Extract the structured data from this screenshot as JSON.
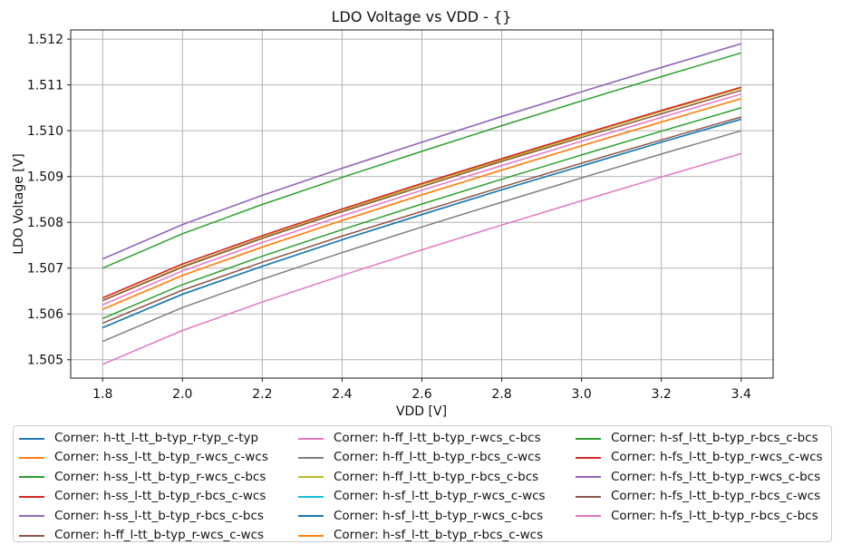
{
  "chart_data": {
    "type": "line",
    "title": "LDO Voltage vs VDD - {}",
    "xlabel": "VDD [V]",
    "ylabel": "LDO Voltage [V]",
    "grid": true,
    "legend_position": "below",
    "legend_columns": 3,
    "xlim": [
      1.72,
      3.48
    ],
    "ylim": [
      1.5046,
      1.5122
    ],
    "xticks": [
      "1.8",
      "2.0",
      "2.2",
      "2.4",
      "2.6",
      "2.8",
      "3.0",
      "3.2",
      "3.4"
    ],
    "yticks": [
      "1.505",
      "1.506",
      "1.507",
      "1.508",
      "1.509",
      "1.510",
      "1.511",
      "1.512"
    ],
    "x": [
      1.8,
      2.0,
      2.2,
      2.4,
      2.6,
      2.8,
      3.0,
      3.2,
      3.4
    ],
    "series": [
      {
        "label": "Corner: h-tt_l-tt_b-typ_r-typ_c-typ",
        "color": "#1f77b4",
        "values": [
          1.5057,
          1.50643,
          1.50704,
          1.50762,
          1.50817,
          1.50871,
          1.50923,
          1.50975,
          1.51025
        ]
      },
      {
        "label": "Corner: h-ss_l-tt_b-typ_r-wcs_c-wcs",
        "color": "#ff7f0e",
        "values": [
          1.5061,
          1.50684,
          1.50746,
          1.50804,
          1.5086,
          1.50914,
          1.50967,
          1.51019,
          1.5107
        ]
      },
      {
        "label": "Corner: h-ss_l-tt_b-typ_r-wcs_c-bcs",
        "color": "#2ca02c",
        "values": [
          1.507,
          1.50775,
          1.50839,
          1.50898,
          1.50955,
          1.51011,
          1.51065,
          1.51118,
          1.5117
        ]
      },
      {
        "label": "Corner: h-ss_l-tt_b-typ_r-bcs_c-wcs",
        "color": "#d62728",
        "values": [
          1.50635,
          1.50709,
          1.50771,
          1.50829,
          1.50885,
          1.50939,
          1.50992,
          1.51044,
          1.51095
        ]
      },
      {
        "label": "Corner: h-ss_l-tt_b-typ_r-bcs_c-bcs",
        "color": "#9467bd",
        "values": [
          1.5072,
          1.50795,
          1.50859,
          1.50918,
          1.50975,
          1.51031,
          1.51085,
          1.51138,
          1.5119
        ]
      },
      {
        "label": "Corner: h-ff_l-tt_b-typ_r-wcs_c-wcs",
        "color": "#8c564b",
        "values": [
          1.5058,
          1.50652,
          1.50713,
          1.5077,
          1.50824,
          1.50877,
          1.50929,
          1.5098,
          1.5103
        ]
      },
      {
        "label": "Corner: h-ff_l-tt_b-typ_r-wcs_c-bcs",
        "color": "#e377c2",
        "values": [
          1.5049,
          1.50564,
          1.50626,
          1.50684,
          1.5074,
          1.50794,
          1.50847,
          1.50899,
          1.5095
        ]
      },
      {
        "label": "Corner: h-ff_l-tt_b-typ_r-bcs_c-wcs",
        "color": "#7f7f7f",
        "values": [
          1.5054,
          1.50614,
          1.50676,
          1.50734,
          1.5079,
          1.50844,
          1.50897,
          1.50949,
          1.51
        ]
      },
      {
        "label": "Corner: h-ff_l-tt_b-typ_r-bcs_c-bcs",
        "color": "#bcbd22",
        "values": [
          1.5063,
          1.50704,
          1.50767,
          1.50825,
          1.50882,
          1.50936,
          1.50989,
          1.51042,
          1.51093
        ]
      },
      {
        "label": "Corner: h-sf_l-tt_b-typ_r-wcs_c-wcs",
        "color": "#17becf",
        "values": [
          1.5057,
          1.50643,
          1.50704,
          1.50762,
          1.50817,
          1.50871,
          1.50923,
          1.50975,
          1.51025
        ]
      },
      {
        "label": "Corner: h-sf_l-tt_b-typ_r-wcs_c-bcs",
        "color": "#1f77b4",
        "values": [
          1.5057,
          1.50643,
          1.50704,
          1.50762,
          1.50817,
          1.50871,
          1.50923,
          1.50975,
          1.51025
        ]
      },
      {
        "label": "Corner: h-sf_l-tt_b-typ_r-bcs_c-wcs",
        "color": "#ff7f0e",
        "values": [
          1.5061,
          1.50684,
          1.50746,
          1.50804,
          1.5086,
          1.50914,
          1.50967,
          1.51019,
          1.5107
        ]
      },
      {
        "label": "Corner: h-sf_l-tt_b-typ_r-bcs_c-bcs",
        "color": "#2ca02c",
        "values": [
          1.5059,
          1.50664,
          1.50726,
          1.50784,
          1.5084,
          1.50894,
          1.50947,
          1.50999,
          1.5105
        ]
      },
      {
        "label": "Corner: h-fs_l-tt_b-typ_r-wcs_c-wcs",
        "color": "#d62728",
        "values": [
          1.50635,
          1.50709,
          1.50771,
          1.50829,
          1.50885,
          1.50939,
          1.50992,
          1.51044,
          1.51095
        ]
      },
      {
        "label": "Corner: h-fs_l-tt_b-typ_r-wcs_c-bcs",
        "color": "#9467bd",
        "values": [
          1.5072,
          1.50795,
          1.50859,
          1.50918,
          1.50975,
          1.51031,
          1.51085,
          1.51138,
          1.5119
        ]
      },
      {
        "label": "Corner: h-fs_l-tt_b-typ_r-bcs_c-wcs",
        "color": "#8c564b",
        "values": [
          1.50629,
          1.50702,
          1.50765,
          1.50823,
          1.50878,
          1.50933,
          1.50985,
          1.51037,
          1.51088
        ]
      },
      {
        "label": "Corner: h-fs_l-tt_b-typ_r-bcs_c-bcs",
        "color": "#e377c2",
        "values": [
          1.5062,
          1.50694,
          1.50756,
          1.50814,
          1.5087,
          1.50924,
          1.50977,
          1.51029,
          1.5108
        ]
      }
    ],
    "style": {
      "grid_color": "#b3b3b3",
      "spine_color": "#1a1a1a",
      "text_color": "#111111",
      "background": "#ffffff"
    }
  }
}
